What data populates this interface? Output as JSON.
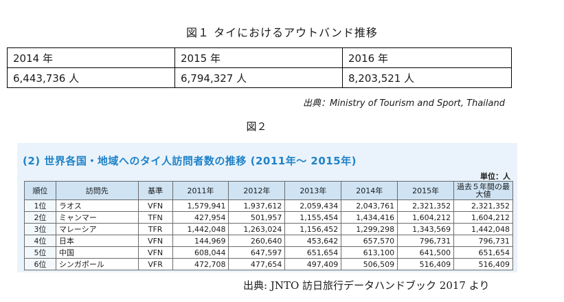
{
  "figure1": {
    "title": "図１ タイにおけるアウトバンド推移",
    "headers": [
      "2014 年",
      "2015 年",
      "2016 年"
    ],
    "values": [
      "6,443,736 人",
      "6,794,327 人",
      "8,203,521 人"
    ],
    "source": "出典：Ministry of Tourism and Sport, Thailand"
  },
  "figure2": {
    "label": "図２",
    "title": "(2) 世界各国・地域へのタイ人訪問者数の推移 (2011年～ 2015年)",
    "unit": "単位：人",
    "columns": [
      "順位",
      "訪問先",
      "基準",
      "2011年",
      "2012年",
      "2013年",
      "2014年",
      "2015年",
      "過去５年間の最大値"
    ],
    "rows": [
      [
        "1位",
        "ラオス",
        "VFN",
        "1,579,941",
        "1,937,612",
        "2,059,434",
        "2,043,761",
        "2,321,352",
        "2,321,352"
      ],
      [
        "2位",
        "ミャンマー",
        "TFN",
        "427,954",
        "501,957",
        "1,155,454",
        "1,434,416",
        "1,604,212",
        "1,604,212"
      ],
      [
        "3位",
        "マレーシア",
        "TFR",
        "1,442,048",
        "1,263,024",
        "1,156,452",
        "1,299,298",
        "1,343,569",
        "1,442,048"
      ],
      [
        "4位",
        "日本",
        "VFN",
        "144,969",
        "260,640",
        "453,642",
        "657,570",
        "796,731",
        "796,731"
      ],
      [
        "5位",
        "中国",
        "VFN",
        "608,044",
        "647,597",
        "651,654",
        "613,100",
        "641,500",
        "651,654"
      ],
      [
        "6位",
        "シンガポール",
        "VFR",
        "472,708",
        "477,654",
        "497,409",
        "506,509",
        "516,409",
        "516,409"
      ]
    ],
    "source": "出典: JNTO 訪日旅行データハンドブック 2017 より"
  }
}
